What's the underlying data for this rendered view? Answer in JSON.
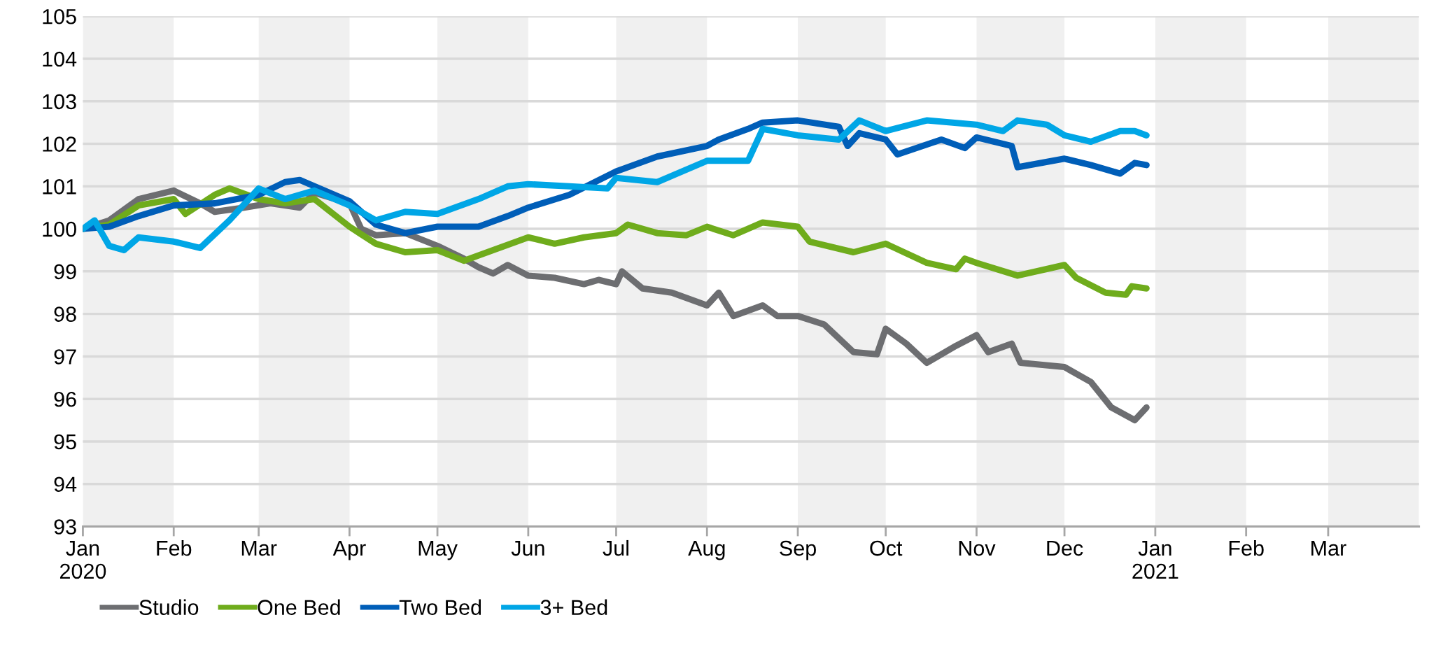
{
  "chart_data": {
    "type": "line",
    "xlim": [
      "2020-01-01",
      "2021-04-01"
    ],
    "xticks": [
      {
        "value": "2020-01-01",
        "label": "Jan\n2020"
      },
      {
        "value": "2020-02-01",
        "label": "Feb"
      },
      {
        "value": "2020-03-01",
        "label": "Mar"
      },
      {
        "value": "2020-04-01",
        "label": "Apr"
      },
      {
        "value": "2020-05-01",
        "label": "May"
      },
      {
        "value": "2020-06-01",
        "label": "Jun"
      },
      {
        "value": "2020-07-01",
        "label": "Jul"
      },
      {
        "value": "2020-08-01",
        "label": "Aug"
      },
      {
        "value": "2020-09-01",
        "label": "Sep"
      },
      {
        "value": "2020-10-01",
        "label": "Oct"
      },
      {
        "value": "2020-11-01",
        "label": "Nov"
      },
      {
        "value": "2020-12-01",
        "label": "Dec"
      },
      {
        "value": "2021-01-01",
        "label": "Jan\n2021"
      },
      {
        "value": "2021-02-01",
        "label": "Feb"
      },
      {
        "value": "2021-03-01",
        "label": "Mar"
      }
    ],
    "ylim": [
      93,
      105
    ],
    "yticks": [
      93,
      94,
      95,
      96,
      97,
      98,
      99,
      100,
      101,
      102,
      103,
      104,
      105
    ],
    "grid": "y",
    "legend": "bottom left",
    "marker": "none",
    "line_style": "solid",
    "bands": [
      {
        "axis": "x",
        "from": "2020-01-01",
        "to": "2020-02-01",
        "color": "#f0f0f0"
      },
      {
        "axis": "x",
        "from": "2020-03-01",
        "to": "2020-04-01",
        "color": "#f0f0f0"
      },
      {
        "axis": "x",
        "from": "2020-05-01",
        "to": "2020-06-01",
        "color": "#f0f0f0"
      },
      {
        "axis": "x",
        "from": "2020-07-01",
        "to": "2020-08-01",
        "color": "#f0f0f0"
      },
      {
        "axis": "x",
        "from": "2020-09-01",
        "to": "2020-10-01",
        "color": "#f0f0f0"
      },
      {
        "axis": "x",
        "from": "2020-11-01",
        "to": "2020-12-01",
        "color": "#f0f0f0"
      },
      {
        "axis": "x",
        "from": "2021-01-01",
        "to": "2021-02-01",
        "color": "#f0f0f0"
      },
      {
        "axis": "x",
        "from": "2021-03-01",
        "to": "2021-04-01",
        "color": "#f0f0f0"
      }
    ],
    "series": [
      {
        "name": "Studio",
        "color": "#6d6e71",
        "x": [
          "2020-01-01",
          "2020-01-10",
          "2020-01-20",
          "2020-02-01",
          "2020-02-10",
          "2020-02-15",
          "2020-02-25",
          "2020-03-05",
          "2020-03-15",
          "2020-03-20",
          "2020-04-01",
          "2020-04-05",
          "2020-04-10",
          "2020-04-20",
          "2020-05-01",
          "2020-05-10",
          "2020-05-15",
          "2020-05-20",
          "2020-05-25",
          "2020-06-01",
          "2020-06-10",
          "2020-06-20",
          "2020-06-25",
          "2020-07-01",
          "2020-07-03",
          "2020-07-10",
          "2020-07-20",
          "2020-08-01",
          "2020-08-05",
          "2020-08-10",
          "2020-08-20",
          "2020-08-25",
          "2020-09-01",
          "2020-09-10",
          "2020-09-20",
          "2020-09-28",
          "2020-10-01",
          "2020-10-08",
          "2020-10-15",
          "2020-10-25",
          "2020-11-01",
          "2020-11-05",
          "2020-11-13",
          "2020-11-16",
          "2020-12-01",
          "2020-12-10",
          "2020-12-17",
          "2020-12-25",
          "2020-12-29"
        ],
        "values": [
          100.0,
          100.2,
          100.7,
          100.9,
          100.6,
          100.4,
          100.5,
          100.6,
          100.5,
          100.85,
          100.6,
          100.0,
          99.85,
          99.9,
          99.6,
          99.3,
          99.1,
          98.95,
          99.15,
          98.9,
          98.85,
          98.7,
          98.8,
          98.7,
          99.0,
          98.6,
          98.5,
          98.2,
          98.5,
          97.95,
          98.2,
          97.95,
          97.95,
          97.75,
          97.1,
          97.05,
          97.65,
          97.3,
          96.85,
          97.25,
          97.5,
          97.1,
          97.3,
          96.85,
          96.75,
          96.4,
          95.8,
          95.5,
          95.8
        ]
      },
      {
        "name": "One Bed",
        "color": "#6fac1c",
        "x": [
          "2020-01-01",
          "2020-01-10",
          "2020-01-20",
          "2020-02-01",
          "2020-02-05",
          "2020-02-15",
          "2020-02-20",
          "2020-03-01",
          "2020-03-10",
          "2020-03-20",
          "2020-04-01",
          "2020-04-10",
          "2020-04-20",
          "2020-05-01",
          "2020-05-10",
          "2020-05-20",
          "2020-06-01",
          "2020-06-10",
          "2020-06-20",
          "2020-07-01",
          "2020-07-05",
          "2020-07-15",
          "2020-07-25",
          "2020-08-01",
          "2020-08-10",
          "2020-08-20",
          "2020-09-01",
          "2020-09-05",
          "2020-09-20",
          "2020-10-01",
          "2020-10-15",
          "2020-10-25",
          "2020-10-28",
          "2020-11-01",
          "2020-11-15",
          "2020-12-01",
          "2020-12-05",
          "2020-12-15",
          "2020-12-22",
          "2020-12-24",
          "2020-12-29"
        ],
        "values": [
          100.0,
          100.1,
          100.55,
          100.7,
          100.35,
          100.8,
          100.95,
          100.7,
          100.6,
          100.7,
          100.05,
          99.65,
          99.45,
          99.5,
          99.25,
          99.5,
          99.8,
          99.65,
          99.8,
          99.9,
          100.1,
          99.9,
          99.85,
          100.05,
          99.85,
          100.15,
          100.05,
          99.7,
          99.45,
          99.65,
          99.2,
          99.05,
          99.3,
          99.2,
          98.9,
          99.15,
          98.85,
          98.5,
          98.45,
          98.65,
          98.6
        ]
      },
      {
        "name": "Two Bed",
        "color": "#005eb8",
        "x": [
          "2020-01-01",
          "2020-01-10",
          "2020-01-20",
          "2020-02-01",
          "2020-02-15",
          "2020-03-01",
          "2020-03-10",
          "2020-03-15",
          "2020-04-01",
          "2020-04-10",
          "2020-04-20",
          "2020-05-01",
          "2020-05-15",
          "2020-05-25",
          "2020-06-01",
          "2020-06-15",
          "2020-07-01",
          "2020-07-15",
          "2020-08-01",
          "2020-08-05",
          "2020-08-15",
          "2020-08-20",
          "2020-09-01",
          "2020-09-15",
          "2020-09-18",
          "2020-09-22",
          "2020-10-01",
          "2020-10-05",
          "2020-10-20",
          "2020-10-28",
          "2020-11-01",
          "2020-11-13",
          "2020-11-15",
          "2020-12-01",
          "2020-12-10",
          "2020-12-20",
          "2020-12-25",
          "2020-12-29"
        ],
        "values": [
          100.0,
          100.05,
          100.3,
          100.55,
          100.6,
          100.8,
          101.1,
          101.15,
          100.65,
          100.1,
          99.9,
          100.05,
          100.05,
          100.3,
          100.5,
          100.8,
          101.35,
          101.7,
          101.95,
          102.1,
          102.35,
          102.5,
          102.55,
          102.4,
          101.95,
          102.25,
          102.1,
          101.75,
          102.1,
          101.9,
          102.15,
          101.95,
          101.45,
          101.65,
          101.5,
          101.3,
          101.55,
          101.5
        ]
      },
      {
        "name": "3+ Bed",
        "color": "#00a6e6",
        "x": [
          "2020-01-01",
          "2020-01-05",
          "2020-01-10",
          "2020-01-15",
          "2020-01-20",
          "2020-02-01",
          "2020-02-10",
          "2020-02-20",
          "2020-03-01",
          "2020-03-10",
          "2020-03-20",
          "2020-04-01",
          "2020-04-10",
          "2020-04-20",
          "2020-05-01",
          "2020-05-15",
          "2020-05-25",
          "2020-06-01",
          "2020-06-15",
          "2020-06-28",
          "2020-07-01",
          "2020-07-15",
          "2020-08-01",
          "2020-08-15",
          "2020-08-20",
          "2020-09-01",
          "2020-09-15",
          "2020-09-22",
          "2020-10-01",
          "2020-10-15",
          "2020-11-01",
          "2020-11-10",
          "2020-11-15",
          "2020-11-25",
          "2020-12-01",
          "2020-12-10",
          "2020-12-20",
          "2020-12-25",
          "2020-12-29"
        ],
        "values": [
          100.0,
          100.2,
          99.6,
          99.5,
          99.8,
          99.7,
          99.55,
          100.2,
          100.95,
          100.7,
          100.9,
          100.55,
          100.2,
          100.4,
          100.35,
          100.7,
          101.0,
          101.05,
          101.0,
          100.95,
          101.2,
          101.1,
          101.6,
          101.6,
          102.35,
          102.2,
          102.1,
          102.55,
          102.3,
          102.55,
          102.45,
          102.3,
          102.55,
          102.45,
          102.2,
          102.05,
          102.3,
          102.3,
          102.2
        ]
      }
    ]
  }
}
